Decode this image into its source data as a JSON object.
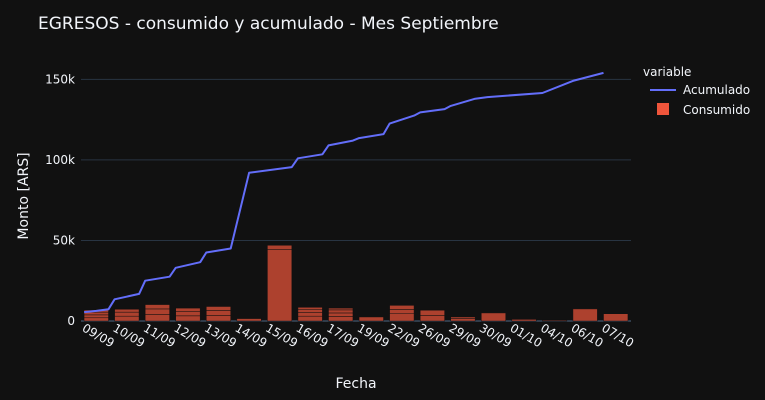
{
  "chart_data": {
    "type": "bar+line",
    "title": "EGRESOS - consumido y acumulado - Mes Septiembre",
    "xlabel": "Fecha",
    "ylabel": "Monto [ARS]",
    "ylim": [
      0,
      162000
    ],
    "yticks": [
      {
        "value": 0,
        "label": "0"
      },
      {
        "value": 50000,
        "label": "50k"
      },
      {
        "value": 100000,
        "label": "100k"
      },
      {
        "value": 150000,
        "label": "150k"
      }
    ],
    "grid": true,
    "legend": {
      "title": "variable",
      "placement": "right"
    },
    "categories": [
      "09/09",
      "10/09",
      "11/09",
      "12/09",
      "13/09",
      "14/09",
      "15/09",
      "16/09",
      "17/09",
      "19/09",
      "22/09",
      "26/09",
      "29/09",
      "30/09",
      "01/10",
      "04/10",
      "06/10",
      "07/10"
    ],
    "series": [
      {
        "name": "Acumulado",
        "type": "line",
        "color": "#636efa",
        "points": [
          [
            -0.4,
            5500
          ],
          [
            0,
            6300
          ],
          [
            0.4,
            7300
          ],
          [
            0.6,
            13500
          ],
          [
            1.4,
            16800
          ],
          [
            1.6,
            25000
          ],
          [
            2.4,
            27500
          ],
          [
            2.6,
            33000
          ],
          [
            3.4,
            36500
          ],
          [
            3.6,
            42500
          ],
          [
            4.4,
            45000
          ],
          [
            5.0,
            92000
          ],
          [
            6.4,
            95500
          ],
          [
            6.6,
            101000
          ],
          [
            7.4,
            103500
          ],
          [
            7.6,
            109000
          ],
          [
            8.4,
            112000
          ],
          [
            8.6,
            113500
          ],
          [
            9.4,
            116000
          ],
          [
            9.6,
            122500
          ],
          [
            10.4,
            127500
          ],
          [
            10.6,
            129500
          ],
          [
            11.4,
            131500
          ],
          [
            11.6,
            133500
          ],
          [
            12.4,
            138000
          ],
          [
            12.8,
            139000
          ],
          [
            14.6,
            141500
          ],
          [
            15.6,
            149000
          ],
          [
            16.6,
            154000
          ]
        ]
      },
      {
        "name": "Consumido",
        "type": "bar",
        "color": "#ef553b",
        "stacks": [
          [
            2000,
            1800,
            1700,
            1300
          ],
          [
            3000,
            2500,
            1800
          ],
          [
            4000,
            3500,
            2700
          ],
          [
            3200,
            2600,
            2200
          ],
          [
            3500,
            3000,
            2500
          ],
          [
            1500
          ],
          [
            44500,
            2500
          ],
          [
            3000,
            2200,
            1800,
            1500
          ],
          [
            2800,
            2200,
            1900,
            1100
          ],
          [
            2500
          ],
          [
            4500,
            2700,
            2500
          ],
          [
            3500,
            3200
          ],
          [
            1500,
            1000
          ],
          [
            5000
          ],
          [
            1000
          ],
          [
            500
          ],
          [
            7500
          ],
          [
            4500
          ]
        ]
      }
    ]
  }
}
